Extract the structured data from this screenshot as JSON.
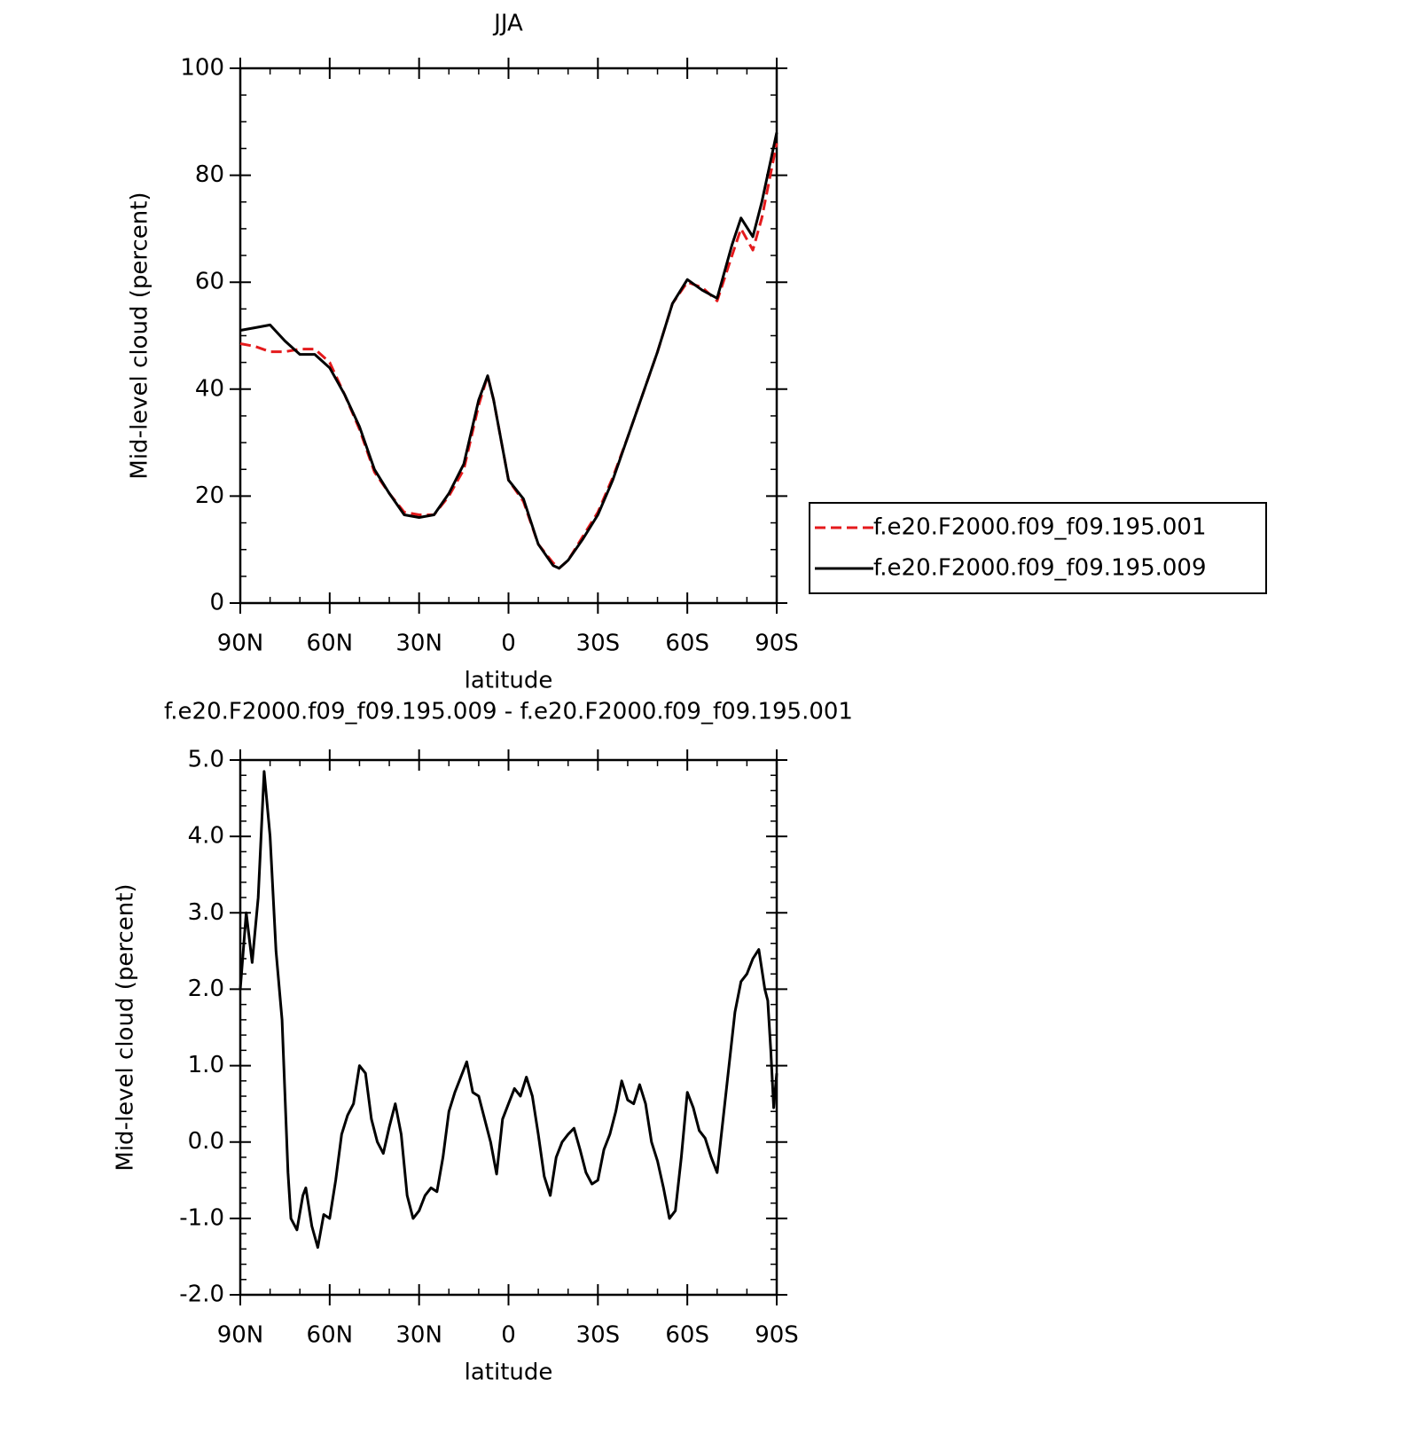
{
  "chart_data": [
    {
      "type": "line",
      "title": "JJA",
      "xlabel": "latitude",
      "ylabel": "Mid-level cloud (percent)",
      "x": [
        90,
        85,
        80,
        75,
        70,
        65,
        60,
        55,
        50,
        45,
        40,
        35,
        30,
        25,
        20,
        15,
        10,
        7,
        5,
        0,
        -5,
        -10,
        -15,
        -17,
        -20,
        -25,
        -30,
        -35,
        -40,
        -45,
        -50,
        -55,
        -60,
        -65,
        -70,
        -75,
        -78,
        -82,
        -85,
        -90
      ],
      "xlim": [
        90,
        -90
      ],
      "xticks": [
        {
          "value": 90,
          "label": "90N"
        },
        {
          "value": 60,
          "label": "60N"
        },
        {
          "value": 30,
          "label": "30N"
        },
        0,
        {
          "value": -30,
          "label": "30S"
        },
        {
          "value": -60,
          "label": "60S"
        },
        {
          "value": -90,
          "label": "90S"
        }
      ],
      "ylim": [
        0,
        100
      ],
      "yticks": [
        0,
        20,
        40,
        60,
        80,
        100
      ],
      "legend": "right",
      "series": [
        {
          "name": "f.e20.F2000.f09_f09.195.001",
          "color": "#e41a1c",
          "style": "dashed",
          "values": [
            48.5,
            48,
            47,
            47,
            47.5,
            47.5,
            45,
            39,
            32.5,
            24.5,
            20.5,
            17,
            16.5,
            16.5,
            20,
            25,
            37,
            42.5,
            38,
            23,
            19,
            11,
            7.5,
            6.5,
            8,
            12.5,
            17,
            23.5,
            31,
            39,
            47,
            56,
            60,
            59,
            56.5,
            65,
            70,
            66,
            72,
            86
          ]
        },
        {
          "name": "f.e20.F2000.f09_f09.195.009",
          "color": "#000000",
          "style": "solid",
          "values": [
            51,
            51.5,
            52,
            49,
            46.5,
            46.5,
            44,
            39,
            33,
            25,
            20.5,
            16.5,
            16,
            16.5,
            20.5,
            26,
            38,
            42.5,
            38,
            23,
            19.5,
            11,
            7,
            6.5,
            8,
            12,
            16.5,
            23,
            31,
            39,
            47,
            56,
            60.5,
            58.5,
            57,
            67,
            72,
            68.5,
            75,
            88
          ]
        }
      ]
    },
    {
      "type": "line",
      "title": "f.e20.F2000.f09_f09.195.009 - f.e20.F2000.f09_f09.195.001",
      "xlabel": "latitude",
      "ylabel": "Mid-level cloud (percent)",
      "x": [
        90,
        88,
        86,
        84,
        82,
        80,
        78,
        76,
        74,
        73,
        71,
        69,
        68,
        66,
        64,
        62,
        60,
        58,
        56,
        54,
        52,
        50,
        48,
        46,
        44,
        42,
        40,
        38,
        36,
        34,
        32,
        30,
        28,
        26,
        24,
        22,
        20,
        18,
        16,
        14,
        12,
        10,
        8,
        6,
        4,
        2,
        0,
        -2,
        -4,
        -6,
        -8,
        -10,
        -12,
        -14,
        -16,
        -18,
        -20,
        -22,
        -24,
        -26,
        -28,
        -30,
        -32,
        -34,
        -36,
        -38,
        -40,
        -42,
        -44,
        -46,
        -48,
        -50,
        -52,
        -54,
        -56,
        -58,
        -60,
        -62,
        -64,
        -66,
        -68,
        -70,
        -72,
        -74,
        -76,
        -78,
        -80,
        -82,
        -84,
        -86,
        -87,
        -88,
        -89,
        -90
      ],
      "xlim": [
        90,
        -90
      ],
      "xticks": [
        {
          "value": 90,
          "label": "90N"
        },
        {
          "value": 60,
          "label": "60N"
        },
        {
          "value": 30,
          "label": "30N"
        },
        0,
        {
          "value": -30,
          "label": "30S"
        },
        {
          "value": -60,
          "label": "60S"
        },
        {
          "value": -90,
          "label": "90S"
        }
      ],
      "ylim": [
        -2,
        5
      ],
      "yticks": [
        {
          "value": -2,
          "label": "-2.0"
        },
        {
          "value": -1,
          "label": "-1.0"
        },
        {
          "value": 0,
          "label": "0.0"
        },
        {
          "value": 1,
          "label": "1.0"
        },
        {
          "value": 2,
          "label": "2.0"
        },
        {
          "value": 3,
          "label": "3.0"
        },
        {
          "value": 4,
          "label": "4.0"
        },
        {
          "value": 5,
          "label": "5.0"
        }
      ],
      "color": "#000000",
      "values": [
        2.0,
        3.0,
        2.35,
        3.2,
        4.85,
        4.0,
        2.5,
        1.6,
        -0.4,
        -1.0,
        -1.15,
        -0.7,
        -0.6,
        -1.1,
        -1.38,
        -0.95,
        -1.0,
        -0.5,
        0.1,
        0.35,
        0.5,
        1.0,
        0.9,
        0.3,
        0.0,
        -0.15,
        0.2,
        0.5,
        0.1,
        -0.7,
        -1.0,
        -0.9,
        -0.7,
        -0.6,
        -0.65,
        -0.2,
        0.4,
        0.65,
        0.85,
        1.05,
        0.65,
        0.6,
        0.3,
        0.0,
        -0.42,
        0.3,
        0.5,
        0.7,
        0.6,
        0.85,
        0.6,
        0.1,
        -0.45,
        -0.7,
        -0.2,
        0.0,
        0.1,
        0.18,
        -0.1,
        -0.4,
        -0.55,
        -0.5,
        -0.1,
        0.1,
        0.4,
        0.8,
        0.55,
        0.5,
        0.75,
        0.5,
        0.0,
        -0.25,
        -0.6,
        -1.0,
        -0.9,
        -0.2,
        0.65,
        0.45,
        0.15,
        0.05,
        -0.2,
        -0.4,
        0.3,
        1.0,
        1.7,
        2.1,
        2.2,
        2.4,
        2.52,
        2.0,
        1.85,
        1.2,
        0.45,
        0.9
      ]
    }
  ]
}
